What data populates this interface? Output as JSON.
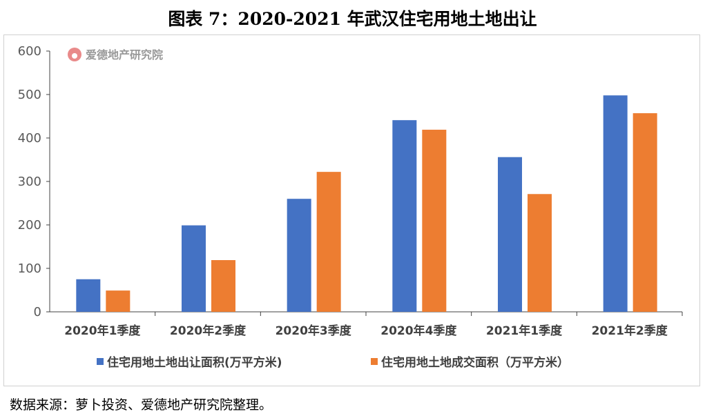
{
  "title": "图表 7：2020-2021 年武汉住宅用地土地出让",
  "source": "数据来源：萝卜投资、爱德地产研究院整理。",
  "watermark": "爱德地产研究院",
  "chart_data": {
    "type": "bar",
    "categories": [
      "2020年1季度",
      "2020年2季度",
      "2020年3季度",
      "2020年4季度",
      "2021年1季度",
      "2021年2季度"
    ],
    "series": [
      {
        "name": "住宅用地土地出让面积(万平方米)",
        "color": "#4472C4",
        "values": [
          75,
          199,
          260,
          441,
          356,
          498
        ]
      },
      {
        "name": "住宅用地土地成交面积（万平方米）",
        "color": "#ED7D31",
        "values": [
          49,
          119,
          322,
          419,
          271,
          457
        ]
      }
    ],
    "ylim": [
      0,
      600
    ],
    "yticks": [
      "0",
      "100",
      "200",
      "300",
      "400",
      "500",
      "600"
    ],
    "grid": false,
    "legend": "bottom"
  }
}
